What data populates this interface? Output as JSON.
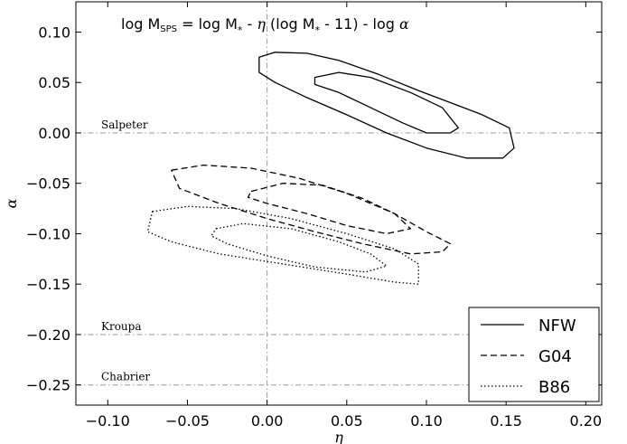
{
  "chart_data": {
    "type": "line",
    "title": {
      "prefix": "log M",
      "sub": "SPS",
      "rest": " = log M",
      "star": "*",
      "mid": " - ",
      "eta": "η",
      "paren": " (log M",
      "tail": " - 11) - log ",
      "alpha": "α"
    },
    "xlabel": "η",
    "ylabel": "α",
    "xlim": [
      -0.12,
      0.21
    ],
    "ylim": [
      -0.27,
      0.13
    ],
    "xticks": [
      -0.1,
      -0.05,
      0.0,
      0.05,
      0.1,
      0.15,
      0.2
    ],
    "xtick_labels": [
      "−0.10",
      "−0.05",
      "0.00",
      "0.05",
      "0.10",
      "0.15",
      "0.20"
    ],
    "yticks": [
      0.1,
      0.05,
      0.0,
      -0.05,
      -0.1,
      -0.15,
      -0.2,
      -0.25
    ],
    "ytick_labels": [
      "0.10",
      "0.05",
      "0.00",
      "−0.05",
      "−0.10",
      "−0.15",
      "−0.20",
      "−0.25"
    ],
    "reference_lines": [
      {
        "label": "Salpeter",
        "alpha": 0.0
      },
      {
        "label": "Kroupa",
        "alpha": -0.2
      },
      {
        "label": "Chabrier",
        "alpha": -0.25
      }
    ],
    "vertical_reference": 0.0,
    "legend_position": "bottom-right",
    "series": [
      {
        "name": "NFW",
        "style": "solid",
        "contours": [
          [
            [
              -0.005,
              0.075
            ],
            [
              0.005,
              0.08
            ],
            [
              0.025,
              0.079
            ],
            [
              0.045,
              0.072
            ],
            [
              0.07,
              0.058
            ],
            [
              0.095,
              0.042
            ],
            [
              0.115,
              0.03
            ],
            [
              0.135,
              0.018
            ],
            [
              0.152,
              0.005
            ],
            [
              0.155,
              -0.015
            ],
            [
              0.148,
              -0.025
            ],
            [
              0.125,
              -0.025
            ],
            [
              0.1,
              -0.015
            ],
            [
              0.075,
              0.0
            ],
            [
              0.05,
              0.018
            ],
            [
              0.025,
              0.035
            ],
            [
              0.005,
              0.05
            ],
            [
              -0.005,
              0.06
            ],
            [
              -0.005,
              0.075
            ]
          ],
          [
            [
              0.03,
              0.055
            ],
            [
              0.045,
              0.06
            ],
            [
              0.065,
              0.055
            ],
            [
              0.09,
              0.04
            ],
            [
              0.11,
              0.025
            ],
            [
              0.12,
              0.005
            ],
            [
              0.115,
              0.0
            ],
            [
              0.1,
              0.0
            ],
            [
              0.085,
              0.01
            ],
            [
              0.065,
              0.025
            ],
            [
              0.045,
              0.04
            ],
            [
              0.03,
              0.048
            ],
            [
              0.03,
              0.055
            ]
          ]
        ]
      },
      {
        "name": "G04",
        "style": "dashed",
        "contours": [
          [
            [
              -0.06,
              -0.037
            ],
            [
              -0.04,
              -0.032
            ],
            [
              -0.01,
              -0.035
            ],
            [
              0.02,
              -0.045
            ],
            [
              0.05,
              -0.06
            ],
            [
              0.08,
              -0.08
            ],
            [
              0.1,
              -0.098
            ],
            [
              0.115,
              -0.11
            ],
            [
              0.11,
              -0.118
            ],
            [
              0.09,
              -0.12
            ],
            [
              0.06,
              -0.11
            ],
            [
              0.03,
              -0.098
            ],
            [
              0.0,
              -0.085
            ],
            [
              -0.03,
              -0.07
            ],
            [
              -0.055,
              -0.055
            ],
            [
              -0.06,
              -0.037
            ]
          ],
          [
            [
              -0.01,
              -0.058
            ],
            [
              0.01,
              -0.05
            ],
            [
              0.035,
              -0.052
            ],
            [
              0.06,
              -0.065
            ],
            [
              0.08,
              -0.08
            ],
            [
              0.09,
              -0.095
            ],
            [
              0.075,
              -0.1
            ],
            [
              0.05,
              -0.092
            ],
            [
              0.025,
              -0.08
            ],
            [
              0.0,
              -0.07
            ],
            [
              -0.012,
              -0.064
            ],
            [
              -0.01,
              -0.058
            ]
          ]
        ]
      },
      {
        "name": "B86",
        "style": "dotted",
        "contours": [
          [
            [
              -0.072,
              -0.078
            ],
            [
              -0.05,
              -0.073
            ],
            [
              -0.02,
              -0.075
            ],
            [
              0.015,
              -0.085
            ],
            [
              0.05,
              -0.1
            ],
            [
              0.08,
              -0.115
            ],
            [
              0.095,
              -0.13
            ],
            [
              0.095,
              -0.15
            ],
            [
              0.08,
              -0.148
            ],
            [
              0.05,
              -0.14
            ],
            [
              0.01,
              -0.13
            ],
            [
              -0.03,
              -0.12
            ],
            [
              -0.06,
              -0.108
            ],
            [
              -0.075,
              -0.098
            ],
            [
              -0.072,
              -0.078
            ]
          ],
          [
            [
              -0.032,
              -0.095
            ],
            [
              -0.015,
              -0.09
            ],
            [
              0.015,
              -0.095
            ],
            [
              0.045,
              -0.108
            ],
            [
              0.065,
              -0.12
            ],
            [
              0.075,
              -0.132
            ],
            [
              0.062,
              -0.138
            ],
            [
              0.03,
              -0.133
            ],
            [
              0.0,
              -0.122
            ],
            [
              -0.025,
              -0.11
            ],
            [
              -0.035,
              -0.102
            ],
            [
              -0.032,
              -0.095
            ]
          ]
        ]
      }
    ]
  }
}
